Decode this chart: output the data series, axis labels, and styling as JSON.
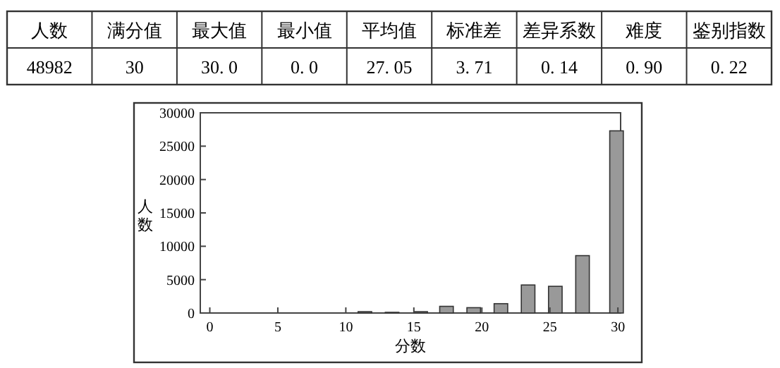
{
  "chart_data": {
    "type": "bar",
    "annotations": [
      "人数",
      "满分值",
      "最大值",
      "最小值",
      "平均值",
      "标准差",
      "差异系数",
      "难度",
      "鉴别指数",
      "48982",
      "30",
      "30. 0",
      "0. 0",
      "27. 05",
      "3. 71",
      "0. 14",
      "0. 90",
      "0. 22"
    ],
    "xlabel": "分数",
    "ylabel": "人数",
    "x": [
      11.4,
      13.4,
      15.5,
      17.4,
      19.4,
      21.4,
      23.4,
      25.4,
      27.4,
      29.9
    ],
    "values": [
      200,
      100,
      200,
      1000,
      800,
      1400,
      4200,
      4000,
      8600,
      27300
    ],
    "color": "#999999",
    "xlim": [
      -0.7,
      30.2
    ],
    "xticks": [
      0,
      5,
      10,
      15,
      20,
      25,
      30
    ],
    "ylim": [
      0,
      30000
    ],
    "yticks": [
      0,
      5000,
      10000,
      15000,
      20000,
      25000,
      30000
    ],
    "grid": false
  }
}
